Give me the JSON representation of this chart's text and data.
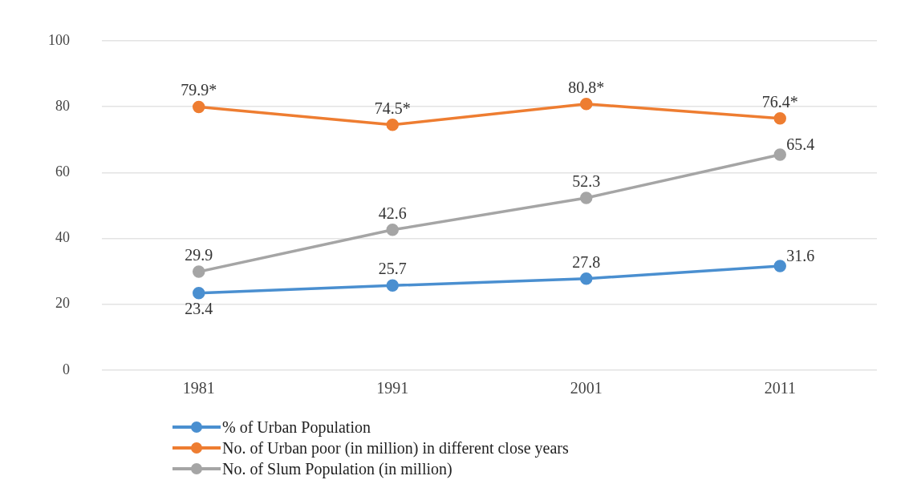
{
  "chart_data": {
    "type": "line",
    "categories": [
      "1981",
      "1991",
      "2001",
      "2011"
    ],
    "series": [
      {
        "name": "% of Urban Population",
        "color": "#4a8fd0",
        "values": [
          23.4,
          25.7,
          27.8,
          31.6
        ],
        "value_labels": [
          "23.4",
          "25.7",
          "27.8",
          "31.6"
        ]
      },
      {
        "name": "No. of Urban poor (in million) in different close years",
        "color": "#ee7d31",
        "values": [
          79.9,
          74.5,
          80.8,
          76.4
        ],
        "value_labels": [
          "79.9*",
          "74.5*",
          "80.8*",
          "76.4*"
        ]
      },
      {
        "name": "No. of Slum Population (in million)",
        "color": "#a5a5a5",
        "values": [
          29.9,
          42.6,
          52.3,
          65.4
        ],
        "value_labels": [
          "29.9",
          "42.6",
          "52.3",
          "65.4"
        ]
      }
    ],
    "ylim": [
      0,
      100
    ],
    "yticks": [
      0,
      20,
      40,
      60,
      80,
      100
    ],
    "grid": "y",
    "legend": "bottom",
    "marker": "circle",
    "line_style": "solid"
  }
}
